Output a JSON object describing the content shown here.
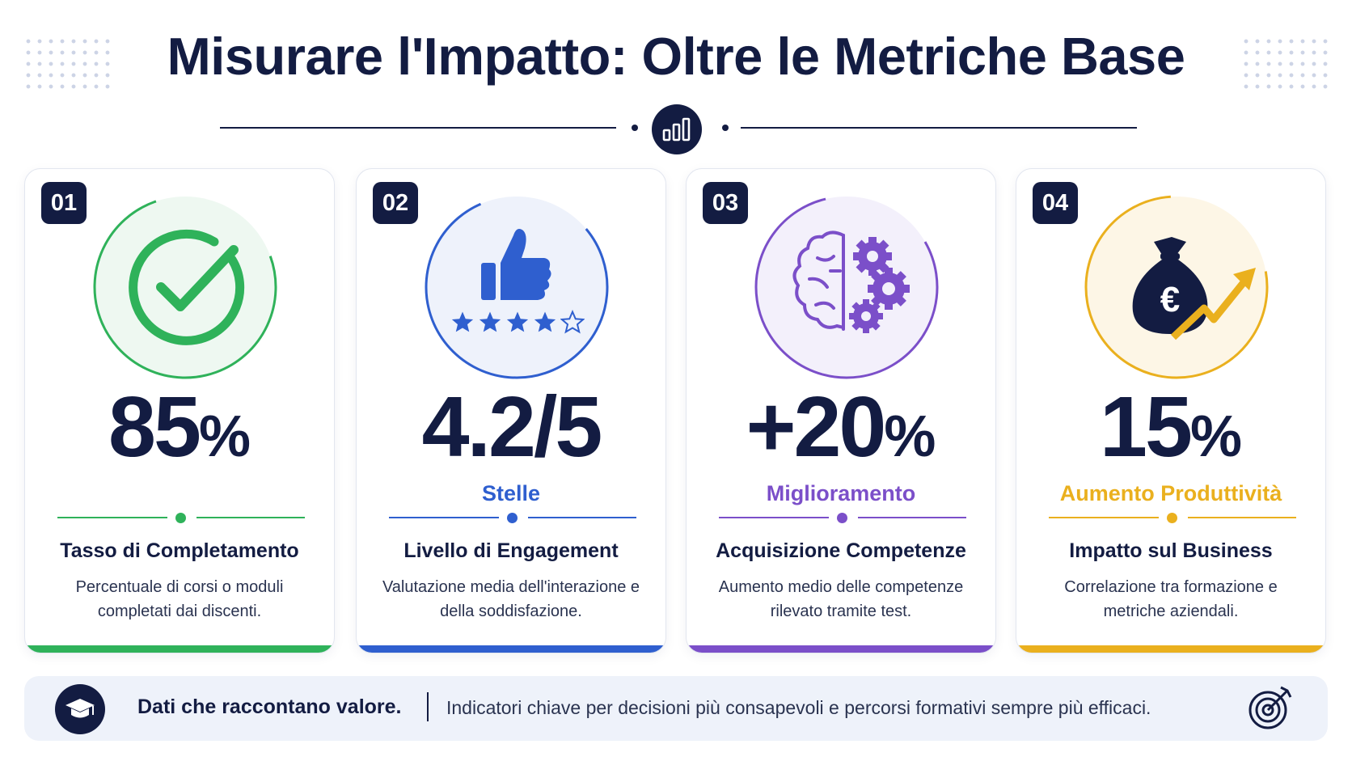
{
  "header": {
    "title": "Misurare l'Impatto: Oltre le Metriche Base",
    "center_icon": "bar-chart-icon"
  },
  "cards": [
    {
      "number": "01",
      "value": "85",
      "unit": "%",
      "subtitle": "",
      "title": "Tasso di Completamento",
      "description": "Percentuale di corsi o moduli completati dai discenti.",
      "accent": "#2fb25a",
      "icon": "check-circle-icon"
    },
    {
      "number": "02",
      "value": "4.2/5",
      "unit": "",
      "subtitle": "Stelle",
      "title": "Livello di Engagement",
      "description": "Valutazione media dell'interazione e della soddisfazione.",
      "accent": "#2f5fcf",
      "icon": "thumbs-up-stars-icon",
      "rating": {
        "value": 4,
        "max": 5
      }
    },
    {
      "number": "03",
      "value": "+20",
      "unit": "%",
      "subtitle": "Miglioramento",
      "title": "Acquisizione Competenze",
      "description": "Aumento medio delle competenze rilevato tramite test.",
      "accent": "#7b4fc9",
      "icon": "brain-gears-icon"
    },
    {
      "number": "04",
      "value": "15",
      "unit": "%",
      "subtitle": "Aumento Produttività",
      "title": "Impatto sul Business",
      "description": "Correlazione tra formazione e metriche aziendali.",
      "accent": "#eab01e",
      "icon": "money-bag-growth-icon"
    }
  ],
  "footer": {
    "headline": "Dati che raccontano valore.",
    "text": "Indicatori chiave per decisioni più consapevoli e percorsi formativi sempre più efficaci.",
    "left_icon": "graduation-cap-icon",
    "right_icon": "target-icon"
  },
  "colors": {
    "navy": "#131c42",
    "footer_bg": "#eef2fa"
  }
}
